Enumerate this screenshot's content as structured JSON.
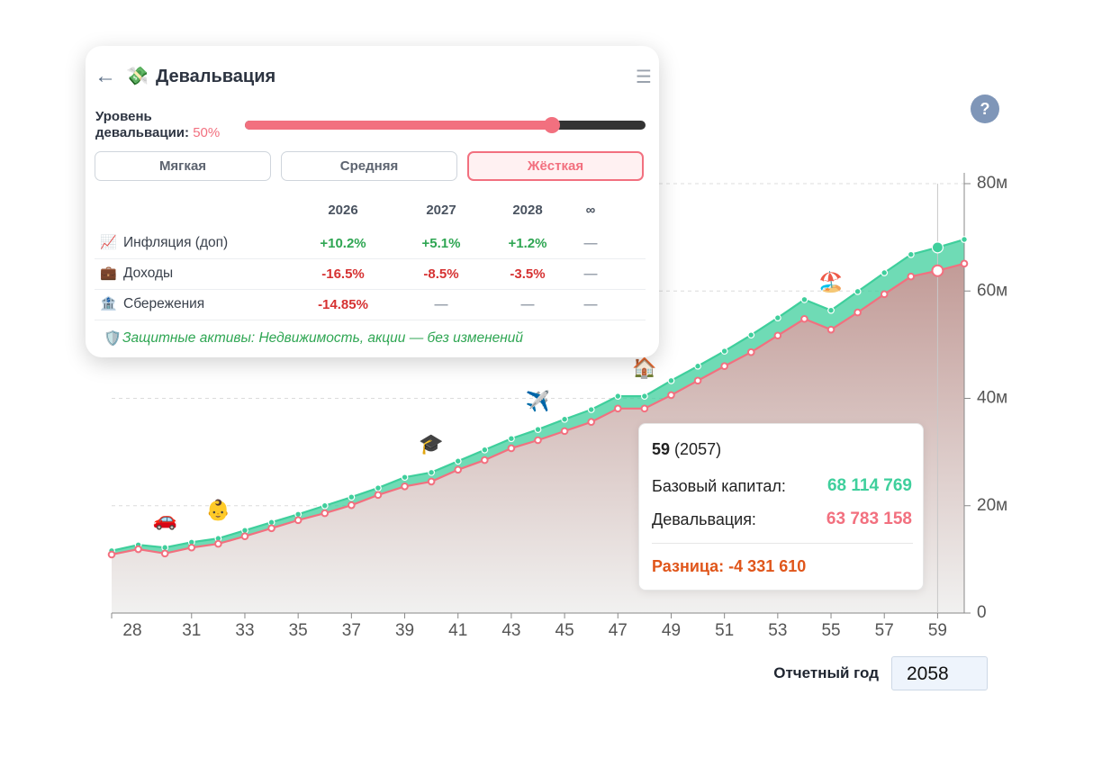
{
  "panel": {
    "back": "←",
    "icon": "💸",
    "title": "Девальвация",
    "menu": "☰",
    "slider_label": "Уровень девальвации:",
    "slider_value": "50%",
    "presets": [
      "Мягкая",
      "Средняя",
      "Жёсткая"
    ],
    "active_preset": 2,
    "table": {
      "header": [
        "2026",
        "2027",
        "2028",
        "∞"
      ],
      "rows": [
        {
          "icon": "📈",
          "label": "Инфляция (доп)",
          "cells": [
            "+10.2%",
            "+5.1%",
            "+1.2%",
            "—"
          ]
        },
        {
          "icon": "💼",
          "label": "Доходы",
          "cells": [
            "-16.5%",
            "-8.5%",
            "-3.5%",
            "—"
          ]
        },
        {
          "icon": "🏦",
          "label": "Сбережения",
          "cells": [
            "-14.85%",
            "—",
            "—",
            "—"
          ]
        }
      ]
    },
    "note": {
      "icon": "🛡️",
      "text": "Защитные активы: Недвижимость, акции — без изменений"
    }
  },
  "chart_data": {
    "type": "area",
    "x": [
      28,
      29,
      30,
      31,
      32,
      33,
      34,
      35,
      36,
      37,
      38,
      39,
      40,
      41,
      42,
      43,
      44,
      45,
      46,
      47,
      48,
      49,
      50,
      51,
      52,
      53,
      54,
      55,
      56,
      57,
      58,
      59,
      60
    ],
    "series": [
      {
        "color": "#3fcf9c",
        "values": [
          11.6,
          12.7,
          12.2,
          13.2,
          13.9,
          15.4,
          16.9,
          18.4,
          20.0,
          21.6,
          23.3,
          25.3,
          26.2,
          28.3,
          30.4,
          32.5,
          34.2,
          36.1,
          37.9,
          40.4,
          40.4,
          43.3,
          46.0,
          48.8,
          51.8,
          55.0,
          58.4,
          56.4,
          59.9,
          63.4,
          66.8,
          68.114769,
          69.6
        ]
      },
      {
        "color": "#f2707f",
        "values": [
          10.9,
          11.9,
          11.1,
          12.2,
          12.9,
          14.3,
          15.8,
          17.3,
          18.6,
          20.1,
          22.0,
          23.6,
          24.5,
          26.7,
          28.5,
          30.7,
          32.2,
          33.9,
          35.6,
          38.1,
          38.1,
          40.6,
          43.3,
          46.0,
          48.6,
          51.7,
          54.8,
          52.8,
          56.0,
          59.4,
          62.7,
          63.783158,
          65.1
        ]
      }
    ],
    "xlim": [
      28,
      60
    ],
    "xticks": [
      28,
      31,
      33,
      35,
      37,
      39,
      41,
      43,
      45,
      47,
      49,
      51,
      53,
      55,
      57,
      59
    ],
    "ylim": [
      0,
      80
    ],
    "yticks": [
      0,
      {
        "value": 20,
        "label": "20м"
      },
      {
        "value": 40,
        "label": "40м"
      },
      {
        "value": 60,
        "label": "60м"
      },
      {
        "value": 80,
        "label": "80м"
      }
    ],
    "grid": true,
    "cursor": 59,
    "events": [
      {
        "x": 30,
        "icon": "🚗"
      },
      {
        "x": 32,
        "icon": "👶"
      },
      {
        "x": 40,
        "icon": "🎓"
      },
      {
        "x": 44,
        "icon": "✈️"
      },
      {
        "x": 48,
        "icon": "🏠"
      },
      {
        "x": 55,
        "icon": "🏖️"
      }
    ]
  },
  "tooltip": {
    "age": "59",
    "year": "(2057)",
    "rows": [
      {
        "label": "Базовый капитал:",
        "value": "68 114 769"
      },
      {
        "label": "Девальвация:",
        "value": "63 783 158"
      }
    ],
    "diff": "Разница: -4 331 610"
  },
  "help": "?",
  "report_year": {
    "label": "Отчетный год",
    "value": "2058"
  }
}
